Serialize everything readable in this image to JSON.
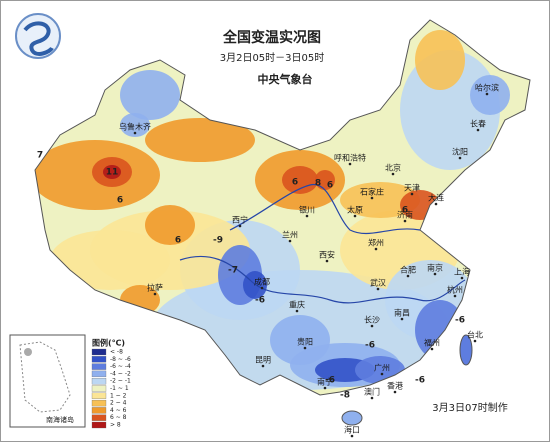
{
  "header": {
    "title": "全国变温实况图",
    "subtitle": "3月2日05时－3日05时",
    "agency": "中央气象台"
  },
  "legend": {
    "title": "图例(℃)",
    "items": [
      {
        "label": "< -8",
        "color": "#1f2d8f"
      },
      {
        "label": "-8 ~ -6",
        "color": "#3252c8"
      },
      {
        "label": "-6 ~ -4",
        "color": "#5e7ddf"
      },
      {
        "label": "-4 ~ -2",
        "color": "#8fb0ee"
      },
      {
        "label": "-2 ~ -1",
        "color": "#bcd7f3"
      },
      {
        "label": "-1 ~ 1",
        "color": "#eef2c2"
      },
      {
        "label": "1 ~ 2",
        "color": "#fbe596"
      },
      {
        "label": "2 ~ 4",
        "color": "#f7c156"
      },
      {
        "label": "4 ~ 6",
        "color": "#ef9a2c"
      },
      {
        "label": "6 ~ 8",
        "color": "#d9541f"
      },
      {
        "label": "> 8",
        "color": "#b01818"
      }
    ]
  },
  "cities": [
    "乌鲁木齐",
    "哈尔滨",
    "长春",
    "沈阳",
    "呼和浩特",
    "北京",
    "天津",
    "石家庄",
    "太原",
    "济南",
    "大连",
    "银川",
    "西宁",
    "兰州",
    "郑州",
    "西安",
    "拉萨",
    "成都",
    "武汉",
    "合肥",
    "南京",
    "上海",
    "重庆",
    "长沙",
    "杭州",
    "南昌",
    "福州",
    "台北",
    "贵阳",
    "昆明",
    "南宁",
    "广州",
    "香港",
    "澳门",
    "海口"
  ],
  "contour_labels": [
    "11",
    "6",
    "7",
    "6",
    "6",
    "6",
    "8",
    "6",
    "-7",
    "-6",
    "-9",
    "-6",
    "-6",
    "-6",
    "-8",
    "-6"
  ],
  "inset_label": "南海诸岛",
  "footer": "3月3日07时制作"
}
